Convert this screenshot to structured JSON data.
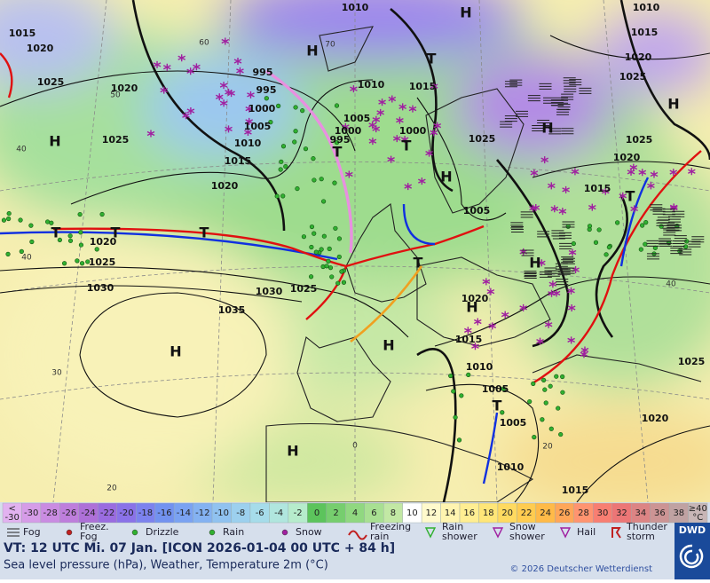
{
  "map": {
    "pressure_labels": [
      "1010",
      "1010",
      "1015",
      "1020",
      "1025",
      "1020",
      "1025",
      "995",
      "995",
      "1000",
      "1005",
      "1010",
      "1015",
      "1020",
      "1000",
      "995",
      "1005",
      "1010",
      "1015",
      "1000",
      "1025",
      "1015",
      "1020",
      "1025",
      "1025",
      "1020",
      "1015",
      "1005",
      "1020",
      "1025",
      "1030",
      "1030",
      "1025",
      "1035",
      "1020",
      "1015",
      "1010",
      "1005",
      "1005",
      "1010",
      "1015",
      "1020",
      "1025"
    ],
    "isotherm_labels": [
      "60",
      "50",
      "70",
      "40",
      "40",
      "40",
      "30",
      "20",
      "0",
      "20"
    ],
    "pressure_centers": [
      "H",
      "H",
      "T",
      "H",
      "T",
      "T",
      "H",
      "H",
      "H",
      "H",
      "T",
      "T",
      "T",
      "T",
      "T",
      "H",
      "H",
      "H",
      "H",
      "T"
    ]
  },
  "scale": {
    "low": {
      "lines": [
        "<",
        "-30"
      ],
      "color": "#e2b2f0"
    },
    "items": [
      {
        "label": "-30",
        "color": "#d69ce8"
      },
      {
        "label": "-28",
        "color": "#ca8ce2"
      },
      {
        "label": "-26",
        "color": "#be7edc"
      },
      {
        "label": "-24",
        "color": "#ae70d8"
      },
      {
        "label": "-22",
        "color": "#9a6ce0"
      },
      {
        "label": "-20",
        "color": "#8a72e8"
      },
      {
        "label": "-18",
        "color": "#7c82ee"
      },
      {
        "label": "-16",
        "color": "#7292f0"
      },
      {
        "label": "-14",
        "color": "#7aa2f2"
      },
      {
        "label": "-12",
        "color": "#84b2f2"
      },
      {
        "label": "-10",
        "color": "#90c2f0"
      },
      {
        "label": "-8",
        "color": "#9cd0ee"
      },
      {
        "label": "-6",
        "color": "#a6dcea"
      },
      {
        "label": "-4",
        "color": "#b0e6de"
      },
      {
        "label": "-2",
        "color": "#b6eccc"
      },
      {
        "label": "0",
        "color": "#5cc45c"
      },
      {
        "label": "2",
        "color": "#76ce6e"
      },
      {
        "label": "4",
        "color": "#90d880"
      },
      {
        "label": "6",
        "color": "#a8e092"
      },
      {
        "label": "8",
        "color": "#c2e8a4"
      },
      {
        "label": "10",
        "color": "#ffffff"
      },
      {
        "label": "12",
        "color": "#fffacc"
      },
      {
        "label": "14",
        "color": "#fff4b0"
      },
      {
        "label": "16",
        "color": "#ffee92"
      },
      {
        "label": "18",
        "color": "#ffe678"
      },
      {
        "label": "20",
        "color": "#ffda60"
      },
      {
        "label": "22",
        "color": "#ffcc50"
      },
      {
        "label": "24",
        "color": "#ffba48"
      },
      {
        "label": "26",
        "color": "#ffa658"
      },
      {
        "label": "28",
        "color": "#ff9470"
      },
      {
        "label": "30",
        "color": "#f87e72"
      },
      {
        "label": "32",
        "color": "#ec7676"
      },
      {
        "label": "34",
        "color": "#dc8484"
      },
      {
        "label": "36",
        "color": "#cc9494"
      },
      {
        "label": "38",
        "color": "#c0a2a2"
      }
    ],
    "high": {
      "lines": [
        "≥40",
        "°C"
      ],
      "color": "#c8b6b6"
    }
  },
  "weather_legend": [
    {
      "lines": [
        "Fog"
      ]
    },
    {
      "lines": [
        "Freez.",
        "Fog"
      ]
    },
    {
      "lines": [
        "Drizzle"
      ]
    },
    {
      "lines": [
        "Rain"
      ]
    },
    {
      "lines": [
        "Snow"
      ]
    },
    {
      "lines": [
        "Freezing",
        "rain"
      ]
    },
    {
      "lines": [
        "Rain",
        "shower"
      ]
    },
    {
      "lines": [
        "Snow",
        "shower"
      ]
    },
    {
      "lines": [
        "Hail"
      ]
    },
    {
      "lines": [
        "Thunder",
        "storm"
      ]
    }
  ],
  "footer": {
    "valid_time": "VT: 12 UTC Mi.  07 Jan. [ICON 2026-01-04  00 UTC + 84 h]",
    "description": "Sea level pressure (hPa), Weather, Temperature 2m (°C)",
    "copyright": "© 2026 Deutscher Wetterdienst",
    "logo": "DWD"
  }
}
